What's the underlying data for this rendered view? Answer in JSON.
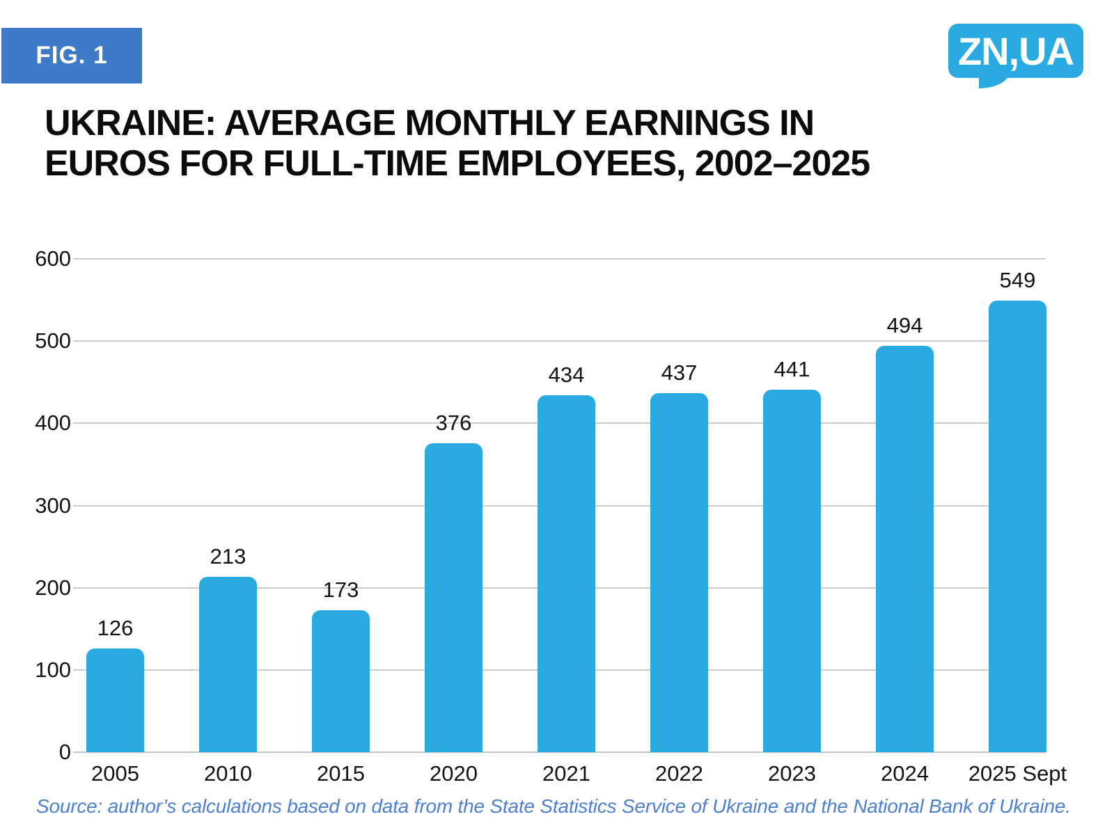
{
  "header": {
    "fig_label": "FIG. 1",
    "logo_text": "ZN,UA"
  },
  "title": {
    "line1": "UKRAINE: AVERAGE MONTHLY EARNINGS IN",
    "line2": "EUROS FOR FULL-TIME EMPLOYEES, 2002–2025"
  },
  "footer": {
    "source_note": "Source: author’s calculations based on data from the State Statistics Service of Ukraine and the National Bank of Ukraine."
  },
  "colors": {
    "bar": "#29ABE2",
    "badge_bg": "#3D7BC8",
    "logo_bg": "#29ABE2",
    "title_text": "#0B0B0B",
    "axis_text": "#111111",
    "gridline": "#CCCCCC",
    "baseline": "#C6C6C6",
    "source_text": "#4C80D4",
    "page_bg": "#FFFFFF"
  },
  "chart_data": {
    "type": "bar",
    "title": "Ukraine: average monthly earnings in euros for full-time employees, 2002–2025",
    "categories": [
      "2005",
      "2010",
      "2015",
      "2020",
      "2021",
      "2022",
      "2023",
      "2024",
      "2025 Sept"
    ],
    "values": [
      126,
      213,
      173,
      376,
      434,
      437,
      441,
      494,
      549
    ],
    "xlabel": "",
    "ylabel": "",
    "ylim": [
      0,
      600
    ],
    "yticks": [
      0,
      100,
      200,
      300,
      400,
      500,
      600
    ],
    "grid": true,
    "legend": false,
    "value_labels": true,
    "bar_color": "#29ABE2"
  }
}
